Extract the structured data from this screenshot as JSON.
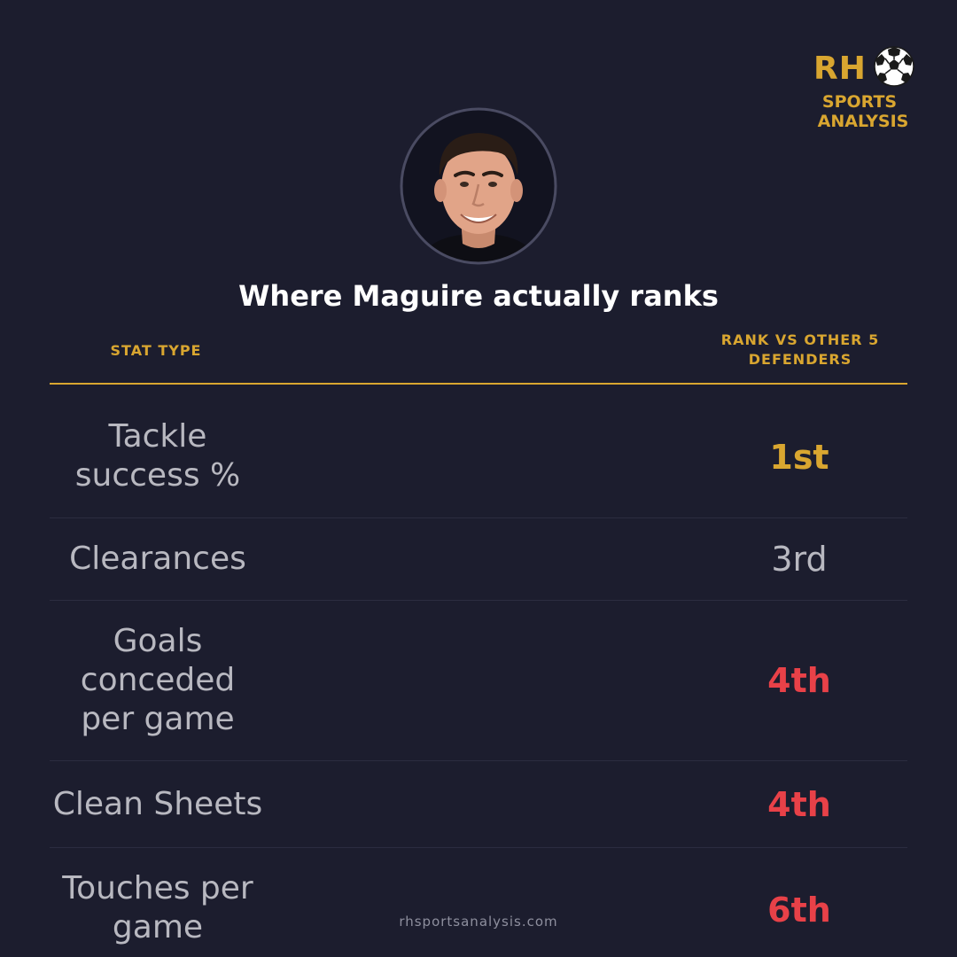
{
  "logo": {
    "mark": "RH",
    "line1": "SPORTS",
    "line2": "ANALYSIS",
    "icon": "football-icon"
  },
  "avatar": {
    "icon": "player-headshot"
  },
  "title": "Where Maguire actually ranks",
  "table": {
    "header_stat": "STAT TYPE",
    "header_rank": "RANK VS OTHER 5 DEFENDERS",
    "rows": [
      {
        "stat": "Tackle success %",
        "rank": "1st",
        "tone": "gold"
      },
      {
        "stat": "Clearances",
        "rank": "3rd",
        "tone": "grey"
      },
      {
        "stat": "Goals conceded per game",
        "rank": "4th",
        "tone": "red"
      },
      {
        "stat": "Clean Sheets",
        "rank": "4th",
        "tone": "red"
      },
      {
        "stat": "Touches per game",
        "rank": "6th",
        "tone": "red"
      }
    ]
  },
  "footer": {
    "url": "rhsportsanalysis.com"
  },
  "colors": {
    "background": "#1c1d2e",
    "accent": "#d9a630",
    "negative": "#e84148",
    "neutral": "#b8b8c0"
  }
}
